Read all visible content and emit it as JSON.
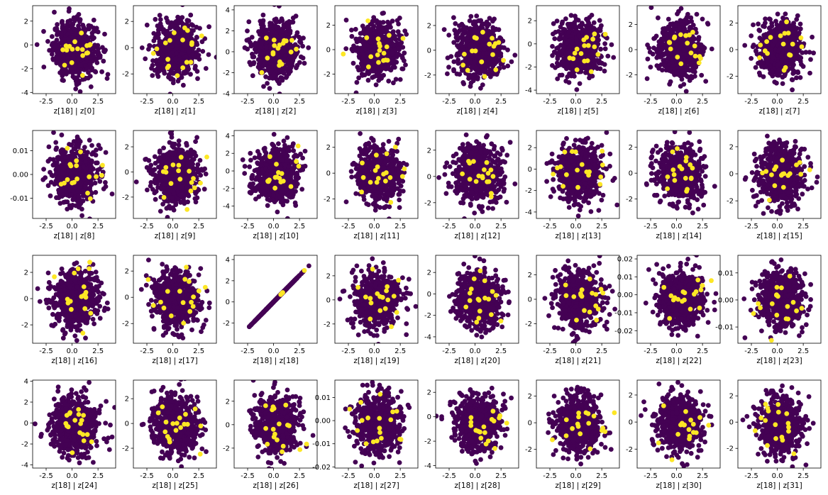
{
  "colors": {
    "background": "#440154",
    "highlight": "#fde725",
    "axis": "#000000"
  },
  "chart_data": [
    {
      "type": "scatter",
      "xlabel": "z[18] | z[0]",
      "xlim": [
        -3.8,
        4.2
      ],
      "ylim": [
        -4.1,
        3.3
      ],
      "x_ticks": [
        "-2.5",
        "0.0",
        "2.5"
      ],
      "x_tick_values": [
        -2.5,
        0,
        2.5
      ],
      "y_ticks": [
        "-4",
        "-2",
        "0",
        "2"
      ],
      "y_tick_values": [
        -4,
        -2,
        0,
        2
      ]
    },
    {
      "type": "scatter",
      "xlabel": "z[18] | z[1]",
      "xlim": [
        -3.8,
        4.2
      ],
      "ylim": [
        -3.5,
        3.2
      ],
      "x_ticks": [
        "-2.5",
        "0.0",
        "2.5"
      ],
      "x_tick_values": [
        -2.5,
        0,
        2.5
      ],
      "y_ticks": [
        "-2",
        "0",
        "2"
      ],
      "y_tick_values": [
        -2,
        0,
        2
      ]
    },
    {
      "type": "scatter",
      "xlabel": "z[18] | z[2]",
      "xlim": [
        -3.8,
        4.2
      ],
      "ylim": [
        -4.0,
        4.4
      ],
      "x_ticks": [
        "-2.5",
        "0.0",
        "2.5"
      ],
      "x_tick_values": [
        -2.5,
        0,
        2.5
      ],
      "y_ticks": [
        "-4",
        "-2",
        "0",
        "2",
        "4"
      ],
      "y_tick_values": [
        -4,
        -2,
        0,
        2,
        4
      ]
    },
    {
      "type": "scatter",
      "xlabel": "z[18] | z[3]",
      "xlim": [
        -3.8,
        4.2
      ],
      "ylim": [
        -3.6,
        3.6
      ],
      "x_ticks": [
        "-2.5",
        "0.0",
        "2.5"
      ],
      "x_tick_values": [
        -2.5,
        0,
        2.5
      ],
      "y_ticks": [
        "-2",
        "0",
        "2"
      ],
      "y_tick_values": [
        -2,
        0,
        2
      ]
    },
    {
      "type": "scatter",
      "xlabel": "z[18] | z[4]",
      "xlim": [
        -3.8,
        4.2
      ],
      "ylim": [
        -3.5,
        3.6
      ],
      "x_ticks": [
        "-2.5",
        "0.0",
        "2.5"
      ],
      "x_tick_values": [
        -2.5,
        0,
        2.5
      ],
      "y_ticks": [
        "-2",
        "0",
        "2"
      ],
      "y_tick_values": [
        -2,
        0,
        2
      ]
    },
    {
      "type": "scatter",
      "xlabel": "z[18] | z[5]",
      "xlim": [
        -3.8,
        4.2
      ],
      "ylim": [
        -4.3,
        3.3
      ],
      "x_ticks": [
        "-2.5",
        "0.0",
        "2.5"
      ],
      "x_tick_values": [
        -2.5,
        0,
        2.5
      ],
      "y_ticks": [
        "-4",
        "-2",
        "0",
        "2"
      ],
      "y_tick_values": [
        -4,
        -2,
        0,
        2
      ]
    },
    {
      "type": "scatter",
      "xlabel": "z[18] | z[6]",
      "xlim": [
        -3.8,
        4.2
      ],
      "ylim": [
        -3.5,
        3.5
      ],
      "x_ticks": [
        "-2.5",
        "0.0",
        "2.5"
      ],
      "x_tick_values": [
        -2.5,
        0,
        2.5
      ],
      "y_ticks": [
        "-2",
        "0",
        "2"
      ],
      "y_tick_values": [
        -2,
        0,
        2
      ]
    },
    {
      "type": "scatter",
      "xlabel": "z[18] | z[7]",
      "xlim": [
        -3.8,
        4.2
      ],
      "ylim": [
        -3.3,
        3.3
      ],
      "x_ticks": [
        "-2.5",
        "0.0",
        "2.5"
      ],
      "x_tick_values": [
        -2.5,
        0,
        2.5
      ],
      "y_ticks": [
        "-2",
        "0",
        "2"
      ],
      "y_tick_values": [
        -2,
        0,
        2
      ]
    },
    {
      "type": "scatter",
      "xlabel": "z[18] | z[8]",
      "xlim": [
        -3.8,
        4.2
      ],
      "ylim": [
        -0.0185,
        0.0185
      ],
      "x_ticks": [
        "-2.5",
        "0.0",
        "2.5"
      ],
      "x_tick_values": [
        -2.5,
        0,
        2.5
      ],
      "y_ticks": [
        "-0.01",
        "0.00",
        "0.01"
      ],
      "y_tick_values": [
        -0.01,
        0,
        0.01
      ]
    },
    {
      "type": "scatter",
      "xlabel": "z[18] | z[9]",
      "xlim": [
        -3.8,
        4.2
      ],
      "ylim": [
        -3.7,
        3.3
      ],
      "x_ticks": [
        "-2.5",
        "0.0",
        "2.5"
      ],
      "x_tick_values": [
        -2.5,
        0,
        2.5
      ],
      "y_ticks": [
        "-2",
        "0",
        "2"
      ],
      "y_tick_values": [
        -2,
        0,
        2
      ]
    },
    {
      "type": "scatter",
      "xlabel": "z[18] | z[10]",
      "xlim": [
        -3.8,
        4.2
      ],
      "ylim": [
        -5.4,
        4.6
      ],
      "x_ticks": [
        "-2.5",
        "0.0",
        "2.5"
      ],
      "x_tick_values": [
        -2.5,
        0,
        2.5
      ],
      "y_ticks": [
        "-4",
        "-2",
        "0",
        "2",
        "4"
      ],
      "y_tick_values": [
        -4,
        -2,
        0,
        2,
        4
      ]
    },
    {
      "type": "scatter",
      "xlabel": "z[18] | z[11]",
      "xlim": [
        -3.8,
        4.2
      ],
      "ylim": [
        -3.5,
        3.3
      ],
      "x_ticks": [
        "-2.5",
        "0.0",
        "2.5"
      ],
      "x_tick_values": [
        -2.5,
        0,
        2.5
      ],
      "y_ticks": [
        "-2",
        "0",
        "2"
      ],
      "y_tick_values": [
        -2,
        0,
        2
      ]
    },
    {
      "type": "scatter",
      "xlabel": "z[18] | z[12]",
      "xlim": [
        -3.8,
        4.2
      ],
      "ylim": [
        -3.2,
        3.5
      ],
      "x_ticks": [
        "-2.5",
        "0.0",
        "2.5"
      ],
      "x_tick_values": [
        -2.5,
        0,
        2.5
      ],
      "y_ticks": [
        "-2",
        "0",
        "2"
      ],
      "y_tick_values": [
        -2,
        0,
        2
      ]
    },
    {
      "type": "scatter",
      "xlabel": "z[18] | z[13]",
      "xlim": [
        -3.8,
        4.2
      ],
      "ylim": [
        -4.6,
        3.6
      ],
      "x_ticks": [
        "-2.5",
        "0.0",
        "2.5"
      ],
      "x_tick_values": [
        -2.5,
        0,
        2.5
      ],
      "y_ticks": [
        "-4",
        "-2",
        "0",
        "2"
      ],
      "y_tick_values": [
        -4,
        -2,
        0,
        2
      ]
    },
    {
      "type": "scatter",
      "xlabel": "z[18] | z[14]",
      "xlim": [
        -3.8,
        4.2
      ],
      "ylim": [
        -3.5,
        3.3
      ],
      "x_ticks": [
        "-2.5",
        "0.0",
        "2.5"
      ],
      "x_tick_values": [
        -2.5,
        0,
        2.5
      ],
      "y_ticks": [
        "-2",
        "0",
        "2"
      ],
      "y_tick_values": [
        -2,
        0,
        2
      ]
    },
    {
      "type": "scatter",
      "xlabel": "z[18] | z[15]",
      "xlim": [
        -3.8,
        4.2
      ],
      "ylim": [
        -3.3,
        3.2
      ],
      "x_ticks": [
        "-2.5",
        "0.0",
        "2.5"
      ],
      "x_tick_values": [
        -2.5,
        0,
        2.5
      ],
      "y_ticks": [
        "-2",
        "0",
        "2"
      ],
      "y_tick_values": [
        -2,
        0,
        2
      ]
    },
    {
      "type": "scatter",
      "xlabel": "z[18] | z[16]",
      "xlim": [
        -3.8,
        4.2
      ],
      "ylim": [
        -3.4,
        3.3
      ],
      "x_ticks": [
        "-2.5",
        "0.0",
        "2.5"
      ],
      "x_tick_values": [
        -2.5,
        0,
        2.5
      ],
      "y_ticks": [
        "-2",
        "0",
        "2"
      ],
      "y_tick_values": [
        -2,
        0,
        2
      ]
    },
    {
      "type": "scatter",
      "xlabel": "z[18] | z[17]",
      "xlim": [
        -3.8,
        4.2
      ],
      "ylim": [
        -3.5,
        3.2
      ],
      "x_ticks": [
        "-2.5",
        "0.0",
        "2.5"
      ],
      "x_tick_values": [
        -2.5,
        0,
        2.5
      ],
      "y_ticks": [
        "-2",
        "0",
        "2"
      ],
      "y_tick_values": [
        -2,
        0,
        2
      ]
    },
    {
      "type": "scatter",
      "xlabel": "z[18] | z[18]",
      "xlim": [
        -3.8,
        4.2
      ],
      "ylim": [
        -3.9,
        4.4
      ],
      "x_ticks": [
        "-2.5",
        "0.0",
        "2.5"
      ],
      "x_tick_values": [
        -2.5,
        0,
        2.5
      ],
      "y_ticks": [
        "-2",
        "0",
        "2",
        "4"
      ],
      "y_tick_values": [
        -2,
        0,
        2,
        4
      ],
      "diagonal": true
    },
    {
      "type": "scatter",
      "xlabel": "z[18] | z[19]",
      "xlim": [
        -3.8,
        4.2
      ],
      "ylim": [
        -3.6,
        3.7
      ],
      "x_ticks": [
        "-2.5",
        "0.0",
        "2.5"
      ],
      "x_tick_values": [
        -2.5,
        0,
        2.5
      ],
      "y_ticks": [
        "-2",
        "0",
        "2"
      ],
      "y_tick_values": [
        -2,
        0,
        2
      ]
    },
    {
      "type": "scatter",
      "xlabel": "z[18] | z[20]",
      "xlim": [
        -3.8,
        4.2
      ],
      "ylim": [
        -4.6,
        3.6
      ],
      "x_ticks": [
        "-2.5",
        "0.0",
        "2.5"
      ],
      "x_tick_values": [
        -2.5,
        0,
        2.5
      ],
      "y_ticks": [
        "-4",
        "-2",
        "0",
        "2"
      ],
      "y_tick_values": [
        -4,
        -2,
        0,
        2
      ]
    },
    {
      "type": "scatter",
      "xlabel": "z[18] | z[21]",
      "xlim": [
        -3.8,
        4.2
      ],
      "ylim": [
        -3.6,
        3.6
      ],
      "x_ticks": [
        "-2.5",
        "0.0",
        "2.5"
      ],
      "x_tick_values": [
        -2.5,
        0,
        2.5
      ],
      "y_ticks": [
        "-2",
        "0",
        "2"
      ],
      "y_tick_values": [
        -2,
        0,
        2
      ]
    },
    {
      "type": "scatter",
      "xlabel": "z[18] | z[22]",
      "xlim": [
        -3.8,
        4.2
      ],
      "ylim": [
        -0.027,
        0.022
      ],
      "x_ticks": [
        "-2.5",
        "0.0",
        "2.5"
      ],
      "x_tick_values": [
        -2.5,
        0,
        2.5
      ],
      "y_ticks": [
        "-0.02",
        "-0.01",
        "0.00",
        "0.01",
        "0.02"
      ],
      "y_tick_values": [
        -0.02,
        -0.01,
        0,
        0.01,
        0.02
      ]
    },
    {
      "type": "scatter",
      "xlabel": "z[18] | z[23]",
      "xlim": [
        -3.8,
        4.2
      ],
      "ylim": [
        -0.016,
        0.0165
      ],
      "x_ticks": [
        "-2.5",
        "0.0",
        "2.5"
      ],
      "x_tick_values": [
        -2.5,
        0,
        2.5
      ],
      "y_ticks": [
        "-0.01",
        "0.00",
        "0.01"
      ],
      "y_tick_values": [
        -0.01,
        0,
        0.01
      ]
    },
    {
      "type": "scatter",
      "xlabel": "z[18] | z[24]",
      "xlim": [
        -3.8,
        4.2
      ],
      "ylim": [
        -4.3,
        4.1
      ],
      "x_ticks": [
        "-2.5",
        "0.0",
        "2.5"
      ],
      "x_tick_values": [
        -2.5,
        0,
        2.5
      ],
      "y_ticks": [
        "-4",
        "-2",
        "0",
        "2",
        "4"
      ],
      "y_tick_values": [
        -4,
        -2,
        0,
        2,
        4
      ]
    },
    {
      "type": "scatter",
      "xlabel": "z[18] | z[25]",
      "xlim": [
        -3.8,
        4.2
      ],
      "ylim": [
        -3.6,
        3.5
      ],
      "x_ticks": [
        "-2.5",
        "0.0",
        "2.5"
      ],
      "x_tick_values": [
        -2.5,
        0,
        2.5
      ],
      "y_ticks": [
        "-2",
        "0",
        "2"
      ],
      "y_tick_values": [
        -2,
        0,
        2
      ]
    },
    {
      "type": "scatter",
      "xlabel": "z[18] | z[26]",
      "xlim": [
        -3.8,
        4.2
      ],
      "ylim": [
        -3.7,
        3.8
      ],
      "x_ticks": [
        "-2.5",
        "0.0",
        "2.5"
      ],
      "x_tick_values": [
        -2.5,
        0,
        2.5
      ],
      "y_ticks": [
        "-2",
        "0",
        "2"
      ],
      "y_tick_values": [
        -2,
        0,
        2
      ]
    },
    {
      "type": "scatter",
      "xlabel": "z[18] | z[27]",
      "xlim": [
        -3.8,
        4.2
      ],
      "ylim": [
        -0.0205,
        0.0175
      ],
      "x_ticks": [
        "-2.5",
        "0.0",
        "2.5"
      ],
      "x_tick_values": [
        -2.5,
        0,
        2.5
      ],
      "y_ticks": [
        "-0.02",
        "-0.01",
        "0.00",
        "0.01"
      ],
      "y_tick_values": [
        -0.02,
        -0.01,
        0,
        0.01
      ]
    },
    {
      "type": "scatter",
      "xlabel": "z[18] | z[28]",
      "xlim": [
        -3.8,
        4.2
      ],
      "ylim": [
        -4.2,
        3.0
      ],
      "x_ticks": [
        "-2.5",
        "0.0",
        "2.5"
      ],
      "x_tick_values": [
        -2.5,
        0,
        2.5
      ],
      "y_ticks": [
        "-4",
        "-2",
        "0",
        "2"
      ],
      "y_tick_values": [
        -4,
        -2,
        0,
        2
      ]
    },
    {
      "type": "scatter",
      "xlabel": "z[18] | z[29]",
      "xlim": [
        -3.8,
        4.2
      ],
      "ylim": [
        -3.4,
        3.2
      ],
      "x_ticks": [
        "-2.5",
        "0.0",
        "2.5"
      ],
      "x_tick_values": [
        -2.5,
        0,
        2.5
      ],
      "y_ticks": [
        "-2",
        "0",
        "2"
      ],
      "y_tick_values": [
        -2,
        0,
        2
      ]
    },
    {
      "type": "scatter",
      "xlabel": "z[18] | z[30]",
      "xlim": [
        -3.8,
        4.2
      ],
      "ylim": [
        -3.4,
        3.1
      ],
      "x_ticks": [
        "-2.5",
        "0.0",
        "2.5"
      ],
      "x_tick_values": [
        -2.5,
        0,
        2.5
      ],
      "y_ticks": [
        "-2",
        "0",
        "2"
      ],
      "y_tick_values": [
        -2,
        0,
        2
      ]
    },
    {
      "type": "scatter",
      "xlabel": "z[18] | z[31]",
      "xlim": [
        -3.8,
        4.2
      ],
      "ylim": [
        -3.5,
        3.2
      ],
      "x_ticks": [
        "-2.5",
        "0.0",
        "2.5"
      ],
      "x_tick_values": [
        -2.5,
        0,
        2.5
      ],
      "y_ticks": [
        "-2",
        "0",
        "2"
      ],
      "y_tick_values": [
        -2,
        0,
        2
      ]
    }
  ]
}
